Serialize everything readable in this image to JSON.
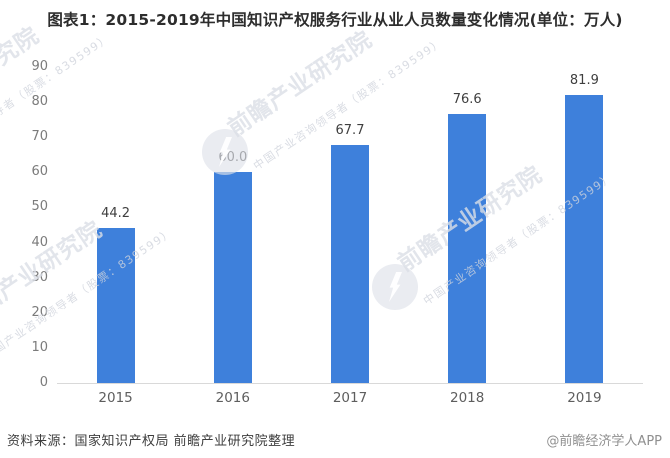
{
  "title": "图表1：2015-2019年中国知识产权服务行业从业人员数量变化情况(单位：万人)",
  "chart_data": {
    "type": "bar",
    "title": "图表1：2015-2019年中国知识产权服务行业从业人员数量变化情况(单位：万人)",
    "categories": [
      "2015",
      "2016",
      "2017",
      "2018",
      "2019"
    ],
    "values": [
      44.2,
      60.0,
      67.7,
      76.6,
      81.9
    ],
    "value_labels": [
      "44.2",
      "60.0",
      "67.7",
      "76.6",
      "81.9"
    ],
    "xlabel": "",
    "ylabel": "",
    "ylim": [
      0,
      90
    ],
    "yticks": [
      0,
      10,
      20,
      30,
      40,
      50,
      60,
      70,
      80,
      90
    ],
    "grid": false,
    "legend": null,
    "bar_color": "#3e80db",
    "axis_line_color": "#d9d9d9"
  },
  "footer": {
    "source_left": "资料来源：国家知识产权局 前瞻产业研究院整理",
    "source_right": "@前瞻经济学人APP"
  },
  "watermark": {
    "brand_text": "前瞻产业研究院",
    "sub_text": "中国产业咨询领导者（股票：839599）",
    "logo": "qianzhan-circle-logo"
  }
}
